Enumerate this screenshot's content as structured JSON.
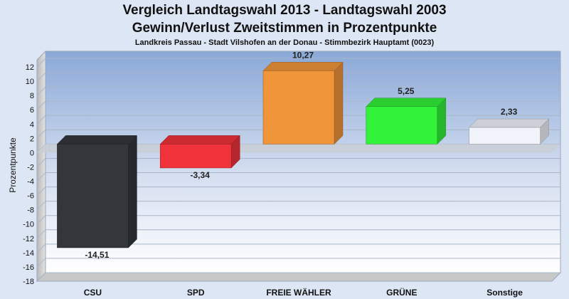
{
  "chart_data": {
    "type": "bar",
    "title": "Vergleich Landtagswahl 2013 - Landtagswahl 2003",
    "subtitle": "Gewinn/Verlust Zweitstimmen in Prozentpunkte",
    "subtitle2": "Landkreis Passau - Stadt Vilshofen an der Donau - Stimmbezirk Hauptamt (0023)",
    "ylabel": "Prozentpunkte",
    "xlabel": "",
    "ylim": [
      -18,
      13
    ],
    "yticks": [
      12,
      10,
      8,
      6,
      4,
      2,
      0,
      -2,
      -4,
      -6,
      -8,
      -10,
      -12,
      -14,
      -16,
      -18
    ],
    "grid": true,
    "categories": [
      "CSU",
      "SPD",
      "FREIE WÄHLER",
      "GRÜNE",
      "Sonstige"
    ],
    "values": [
      -14.51,
      -3.34,
      10.27,
      5.25,
      2.33
    ],
    "value_labels": [
      "-14,51",
      "-3,34",
      "10,27",
      "5,25",
      "2,33"
    ],
    "colors": [
      "#33363b",
      "#f0333a",
      "#f0953a",
      "#33f23a",
      "#f0f3fa"
    ]
  }
}
